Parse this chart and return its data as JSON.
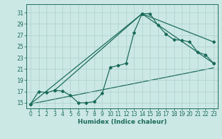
{
  "xlabel": "Humidex (Indice chaleur)",
  "background_color": "#cce8e4",
  "grid_color": "#aacfcb",
  "line_color": "#1a6b5a",
  "xlim": [
    -0.5,
    23.5
  ],
  "ylim": [
    14.0,
    32.5
  ],
  "yticks": [
    15,
    17,
    19,
    21,
    23,
    25,
    27,
    29,
    31
  ],
  "xticks": [
    0,
    1,
    2,
    3,
    4,
    5,
    6,
    7,
    8,
    9,
    10,
    11,
    12,
    13,
    14,
    15,
    16,
    17,
    18,
    19,
    20,
    21,
    22,
    23
  ],
  "series1_y": [
    14.8,
    17.0,
    16.8,
    17.2,
    17.1,
    16.3,
    15.0,
    15.0,
    15.2,
    16.7,
    21.3,
    21.6,
    22.0,
    27.5,
    30.8,
    30.8,
    28.8,
    27.2,
    26.2,
    26.1,
    25.8,
    24.0,
    23.5,
    22.0
  ],
  "line1_pts": [
    [
      0,
      14.8
    ],
    [
      14,
      30.8
    ],
    [
      23,
      22.0
    ]
  ],
  "line2_pts": [
    [
      3,
      17.2
    ],
    [
      14,
      30.8
    ],
    [
      23,
      25.8
    ]
  ],
  "line3_pts": [
    [
      0,
      14.8
    ],
    [
      23,
      21.2
    ]
  ],
  "tick_fontsize": 5.5,
  "xlabel_fontsize": 6.5
}
